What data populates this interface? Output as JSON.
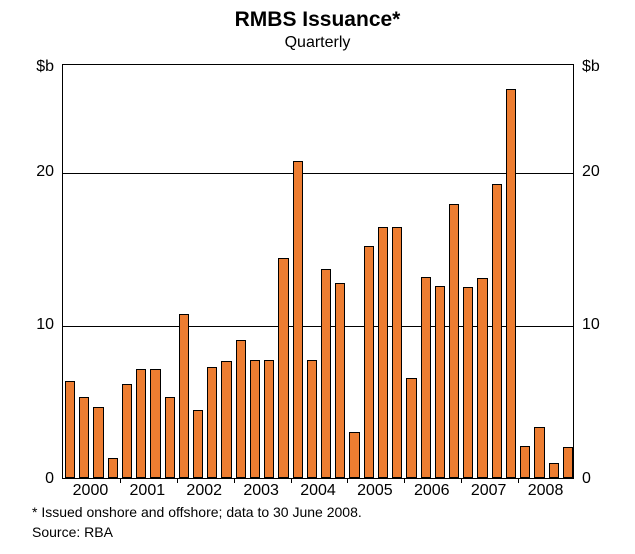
{
  "chart": {
    "type": "bar",
    "title": "RMBS Issuance*",
    "subtitle": "Quarterly",
    "y_unit": "$b",
    "ylim": [
      0,
      27
    ],
    "yticks": [
      0,
      10,
      20
    ],
    "bar_color": "#ed7d31",
    "bar_border": "#000000",
    "grid_color": "#000000",
    "background": "#ffffff",
    "title_fontsize": 21,
    "subtitle_fontsize": 16,
    "axis_fontsize": 16,
    "footnote_fontsize": 14,
    "years": [
      "2000",
      "2001",
      "2002",
      "2003",
      "2004",
      "2005",
      "2006",
      "2007",
      "2008"
    ],
    "values": [
      6.3,
      5.3,
      4.6,
      1.3,
      6.1,
      7.1,
      7.1,
      5.3,
      10.7,
      4.4,
      7.2,
      7.6,
      9.0,
      7.7,
      7.7,
      14.3,
      20.6,
      7.7,
      13.6,
      12.7,
      3.0,
      15.1,
      16.3,
      16.3,
      6.5,
      13.1,
      12.5,
      17.8,
      12.4,
      13.0,
      19.1,
      25.3,
      2.1,
      3.3,
      1.0,
      2.0
    ],
    "footnote": "*   Issued onshore and offshore; data to 30 June 2008.",
    "source": "Source:  RBA"
  }
}
